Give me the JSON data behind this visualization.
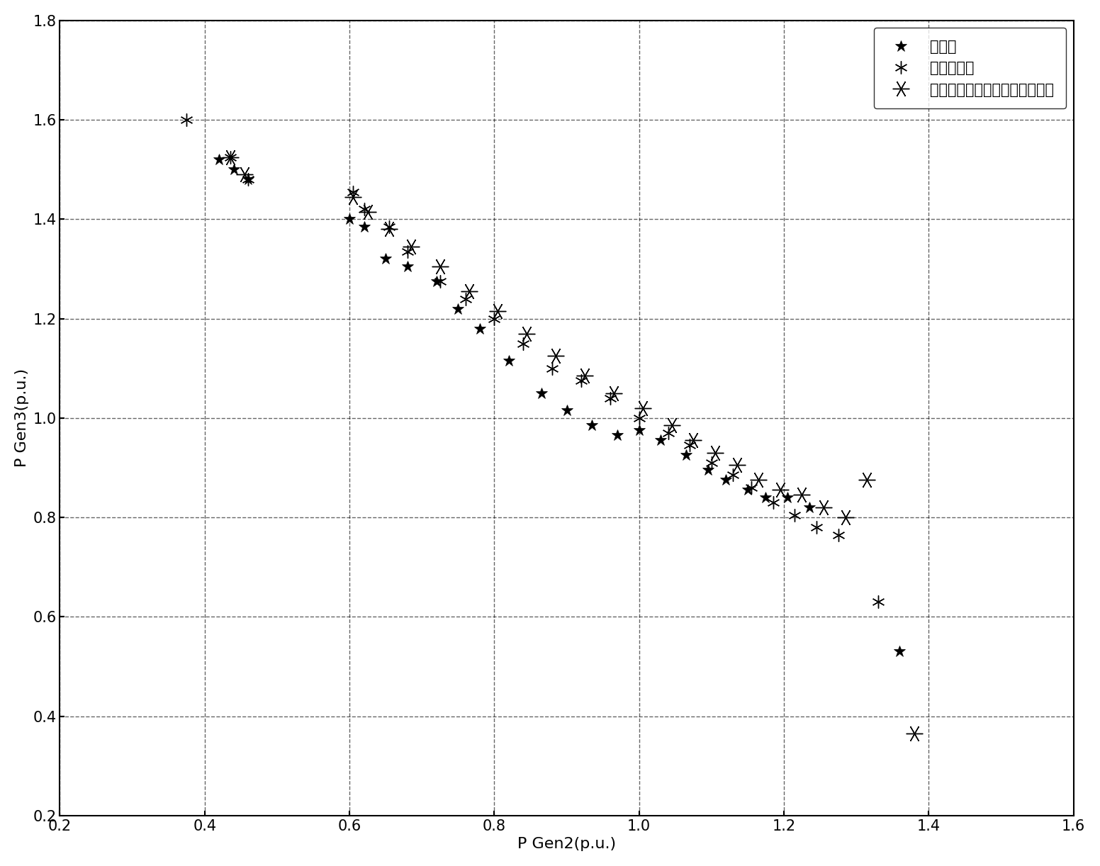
{
  "title": "",
  "xlabel": "P Gen2(p.u.)",
  "ylabel": "P Gen3(p.u.)",
  "xlim": [
    0.2,
    1.6
  ],
  "ylim": [
    0.2,
    1.8
  ],
  "xticks": [
    0.2,
    0.4,
    0.6,
    0.8,
    1.0,
    1.2,
    1.4,
    1.6
  ],
  "yticks": [
    0.2,
    0.4,
    0.6,
    0.8,
    1.0,
    1.2,
    1.4,
    1.6,
    1.8
  ],
  "legend_labels": [
    "原机群",
    "容量加权法",
    "考虑负载率和临界滑差的加权法"
  ],
  "series1_x": [
    0.42,
    0.44,
    0.46,
    0.6,
    0.62,
    0.65,
    0.68,
    0.72,
    0.75,
    0.78,
    0.82,
    0.865,
    0.9,
    0.935,
    0.97,
    1.0,
    1.03,
    1.065,
    1.095,
    1.12,
    1.15,
    1.175,
    1.205,
    1.235,
    1.36
  ],
  "series1_y": [
    1.52,
    1.5,
    1.48,
    1.4,
    1.385,
    1.32,
    1.305,
    1.275,
    1.22,
    1.18,
    1.115,
    1.05,
    1.015,
    0.985,
    0.965,
    0.975,
    0.955,
    0.925,
    0.895,
    0.875,
    0.855,
    0.84,
    0.84,
    0.82,
    0.53
  ],
  "series2_x": [
    0.375,
    0.435,
    0.46,
    0.605,
    0.62,
    0.655,
    0.68,
    0.725,
    0.76,
    0.8,
    0.84,
    0.88,
    0.92,
    0.96,
    1.0,
    1.04,
    1.07,
    1.1,
    1.13,
    1.155,
    1.185,
    1.215,
    1.245,
    1.275,
    1.33
  ],
  "series2_y": [
    1.6,
    1.525,
    1.48,
    1.455,
    1.42,
    1.385,
    1.335,
    1.275,
    1.24,
    1.2,
    1.15,
    1.1,
    1.075,
    1.04,
    1.0,
    0.97,
    0.945,
    0.91,
    0.885,
    0.86,
    0.83,
    0.805,
    0.78,
    0.765,
    0.63
  ],
  "series3_x": [
    0.435,
    0.455,
    0.605,
    0.625,
    0.655,
    0.685,
    0.725,
    0.765,
    0.805,
    0.845,
    0.885,
    0.925,
    0.965,
    1.005,
    1.045,
    1.075,
    1.105,
    1.135,
    1.165,
    1.195,
    1.225,
    1.255,
    1.285,
    1.315,
    1.38
  ],
  "series3_y": [
    1.525,
    1.49,
    1.445,
    1.415,
    1.38,
    1.345,
    1.305,
    1.255,
    1.215,
    1.17,
    1.125,
    1.085,
    1.05,
    1.02,
    0.985,
    0.955,
    0.93,
    0.905,
    0.875,
    0.855,
    0.845,
    0.82,
    0.8,
    0.875,
    0.365
  ],
  "background_color": "#ffffff",
  "marker_color": "#000000"
}
